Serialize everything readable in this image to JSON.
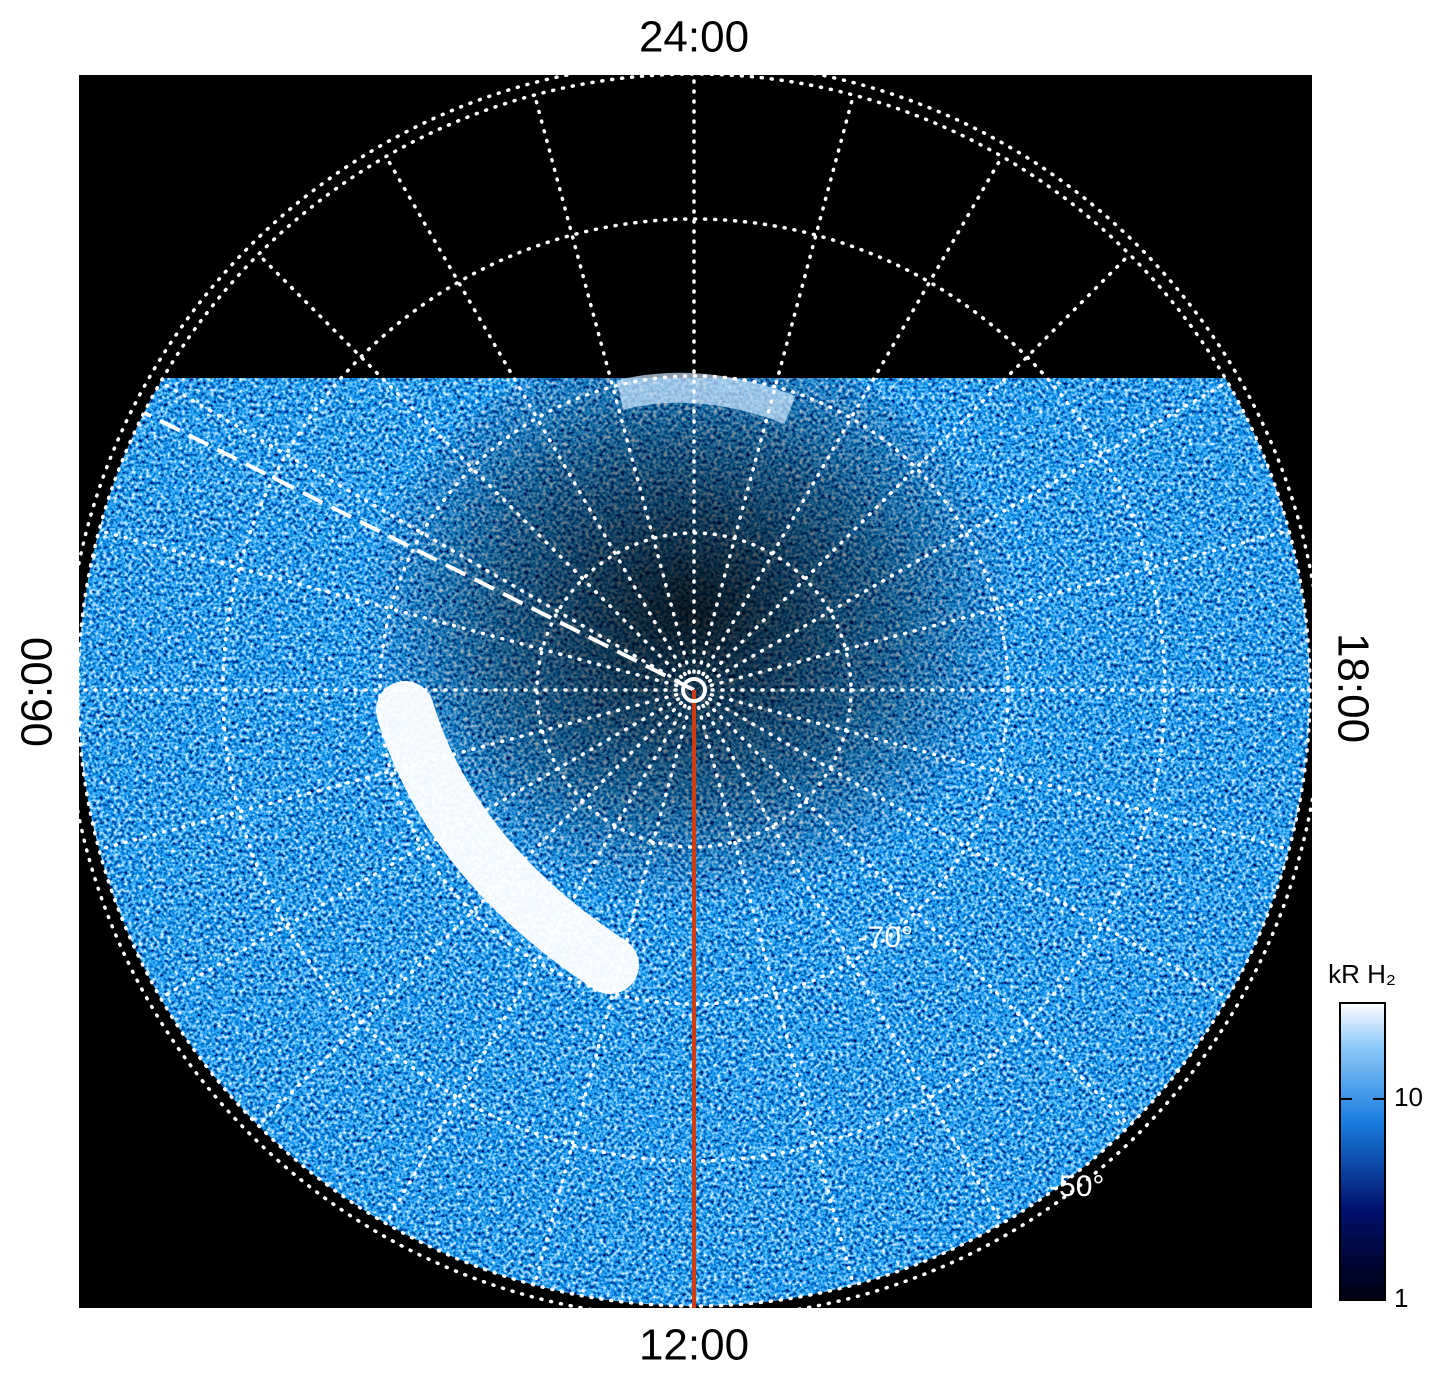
{
  "chart_data": {
    "type": "polar_image",
    "hour_labels": {
      "top": "24:00",
      "bottom": "12:00",
      "left": "06:00",
      "right": "18:00"
    },
    "rlim": [
      -90,
      -50
    ],
    "latitude_circles": [
      -80,
      -70,
      -60,
      -50
    ],
    "latitude_labels": [
      {
        "value": -70,
        "label": "-70°"
      },
      {
        "value": -50,
        "label": "-50°"
      }
    ],
    "colorbar": {
      "label": "kR H₂",
      "log_scale": true,
      "lim": [
        1,
        30
      ],
      "ticks": [
        1,
        10
      ]
    }
  }
}
